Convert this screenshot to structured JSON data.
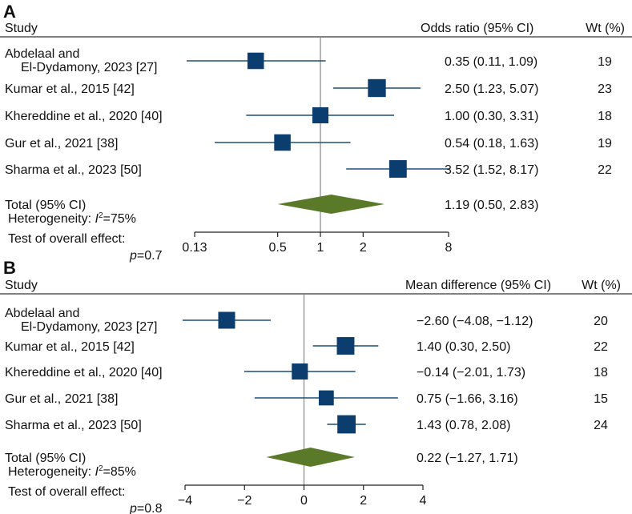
{
  "chart_data": [
    {
      "type": "forest",
      "panel": "A",
      "header": {
        "study": "Study",
        "effect": "Odds ratio (95% CI)",
        "weight": "Wt (%)"
      },
      "scale": "log",
      "xlim": [
        0.13,
        8
      ],
      "ticks": [
        {
          "value": 0.13,
          "label": "0.13"
        },
        {
          "value": 0.5,
          "label": "0.5"
        },
        {
          "value": 1,
          "label": "1"
        },
        {
          "value": 2,
          "label": "2"
        },
        {
          "value": 8,
          "label": "8"
        }
      ],
      "null_value": 1,
      "studies": [
        {
          "label": [
            "Abdelaal and",
            "El-Dydamony,  2023 [27]"
          ],
          "est": 0.35,
          "lo": 0.11,
          "hi": 1.09,
          "ci_text": "0.35 (0.11, 1.09)",
          "weight": "19"
        },
        {
          "label": [
            "Kumar et al., 2015 [42]"
          ],
          "est": 2.5,
          "lo": 1.23,
          "hi": 5.07,
          "ci_text": "2.50 (1.23, 5.07)",
          "weight": "23"
        },
        {
          "label": [
            "Khereddine et al., 2020 [40]"
          ],
          "est": 1.0,
          "lo": 0.3,
          "hi": 3.31,
          "ci_text": "1.00 (0.30, 3.31)",
          "weight": "18"
        },
        {
          "label": [
            "Gur et al., 2021 [38]"
          ],
          "est": 0.54,
          "lo": 0.18,
          "hi": 1.63,
          "ci_text": "0.54 (0.18, 1.63)",
          "weight": "19"
        },
        {
          "label": [
            "Sharma et al., 2023 [50]"
          ],
          "est": 3.52,
          "lo": 1.52,
          "hi": 8.17,
          "ci_text": "3.52 (1.52, 8.17)",
          "weight": "22"
        }
      ],
      "total": {
        "label": "Total (95% CI)",
        "est": 1.19,
        "lo": 0.5,
        "hi": 2.83,
        "ci_text": "1.19 (0.50, 2.83)"
      },
      "heterogeneity": {
        "prefix": "Heterogeneity: ",
        "symbol": "I",
        "superscript": "2",
        "suffix": "=75%"
      },
      "overall_effect": {
        "line1": "Test of overall effect:",
        "p_symbol": "p",
        "p_text": "=0.7"
      }
    },
    {
      "type": "forest",
      "panel": "B",
      "header": {
        "study": "Study",
        "effect": "Mean difference (95% CI)",
        "weight": "Wt (%)"
      },
      "scale": "linear",
      "xlim": [
        -4,
        4
      ],
      "ticks": [
        {
          "value": -4,
          "label": "−4"
        },
        {
          "value": -2,
          "label": "−2"
        },
        {
          "value": 0,
          "label": "0"
        },
        {
          "value": 2,
          "label": "2"
        },
        {
          "value": 4,
          "label": "4"
        }
      ],
      "null_value": 0,
      "studies": [
        {
          "label": [
            "Abdelaal and",
            "El-Dydamony,  2023 [27]"
          ],
          "est": -2.6,
          "lo": -4.08,
          "hi": -1.12,
          "ci_text": "−2.60 (−4.08, −1.12)",
          "weight": "20"
        },
        {
          "label": [
            "Kumar et al., 2015 [42]"
          ],
          "est": 1.4,
          "lo": 0.3,
          "hi": 2.5,
          "ci_text": "1.40 (0.30, 2.50)",
          "weight": "22"
        },
        {
          "label": [
            "Khereddine et al., 2020 [40]"
          ],
          "est": -0.14,
          "lo": -2.01,
          "hi": 1.73,
          "ci_text": "−0.14 (−2.01, 1.73)",
          "weight": "18"
        },
        {
          "label": [
            "Gur et al., 2021 [38]"
          ],
          "est": 0.75,
          "lo": -1.66,
          "hi": 3.16,
          "ci_text": "0.75 (−1.66, 3.16)",
          "weight": "15"
        },
        {
          "label": [
            "Sharma et al., 2023 [50]"
          ],
          "est": 1.43,
          "lo": 0.78,
          "hi": 2.08,
          "ci_text": "1.43 (0.78, 2.08)",
          "weight": "24"
        }
      ],
      "total": {
        "label": "Total (95% CI)",
        "est": 0.22,
        "lo": -1.27,
        "hi": 1.71,
        "ci_text": "0.22 (−1.27, 1.71)"
      },
      "heterogeneity": {
        "prefix": "Heterogeneity: ",
        "symbol": "I",
        "superscript": "2",
        "suffix": "=85%"
      },
      "overall_effect": {
        "line1": "Test of overall effect:",
        "p_symbol": "p",
        "p_text": "=0.8"
      }
    }
  ],
  "colors": {
    "box": "#0b3d6e",
    "whisker": "#1f4e79",
    "diamond": "#5a7a2a",
    "axis": "#222222",
    "null_line": "#888888",
    "rule": "#000000"
  }
}
